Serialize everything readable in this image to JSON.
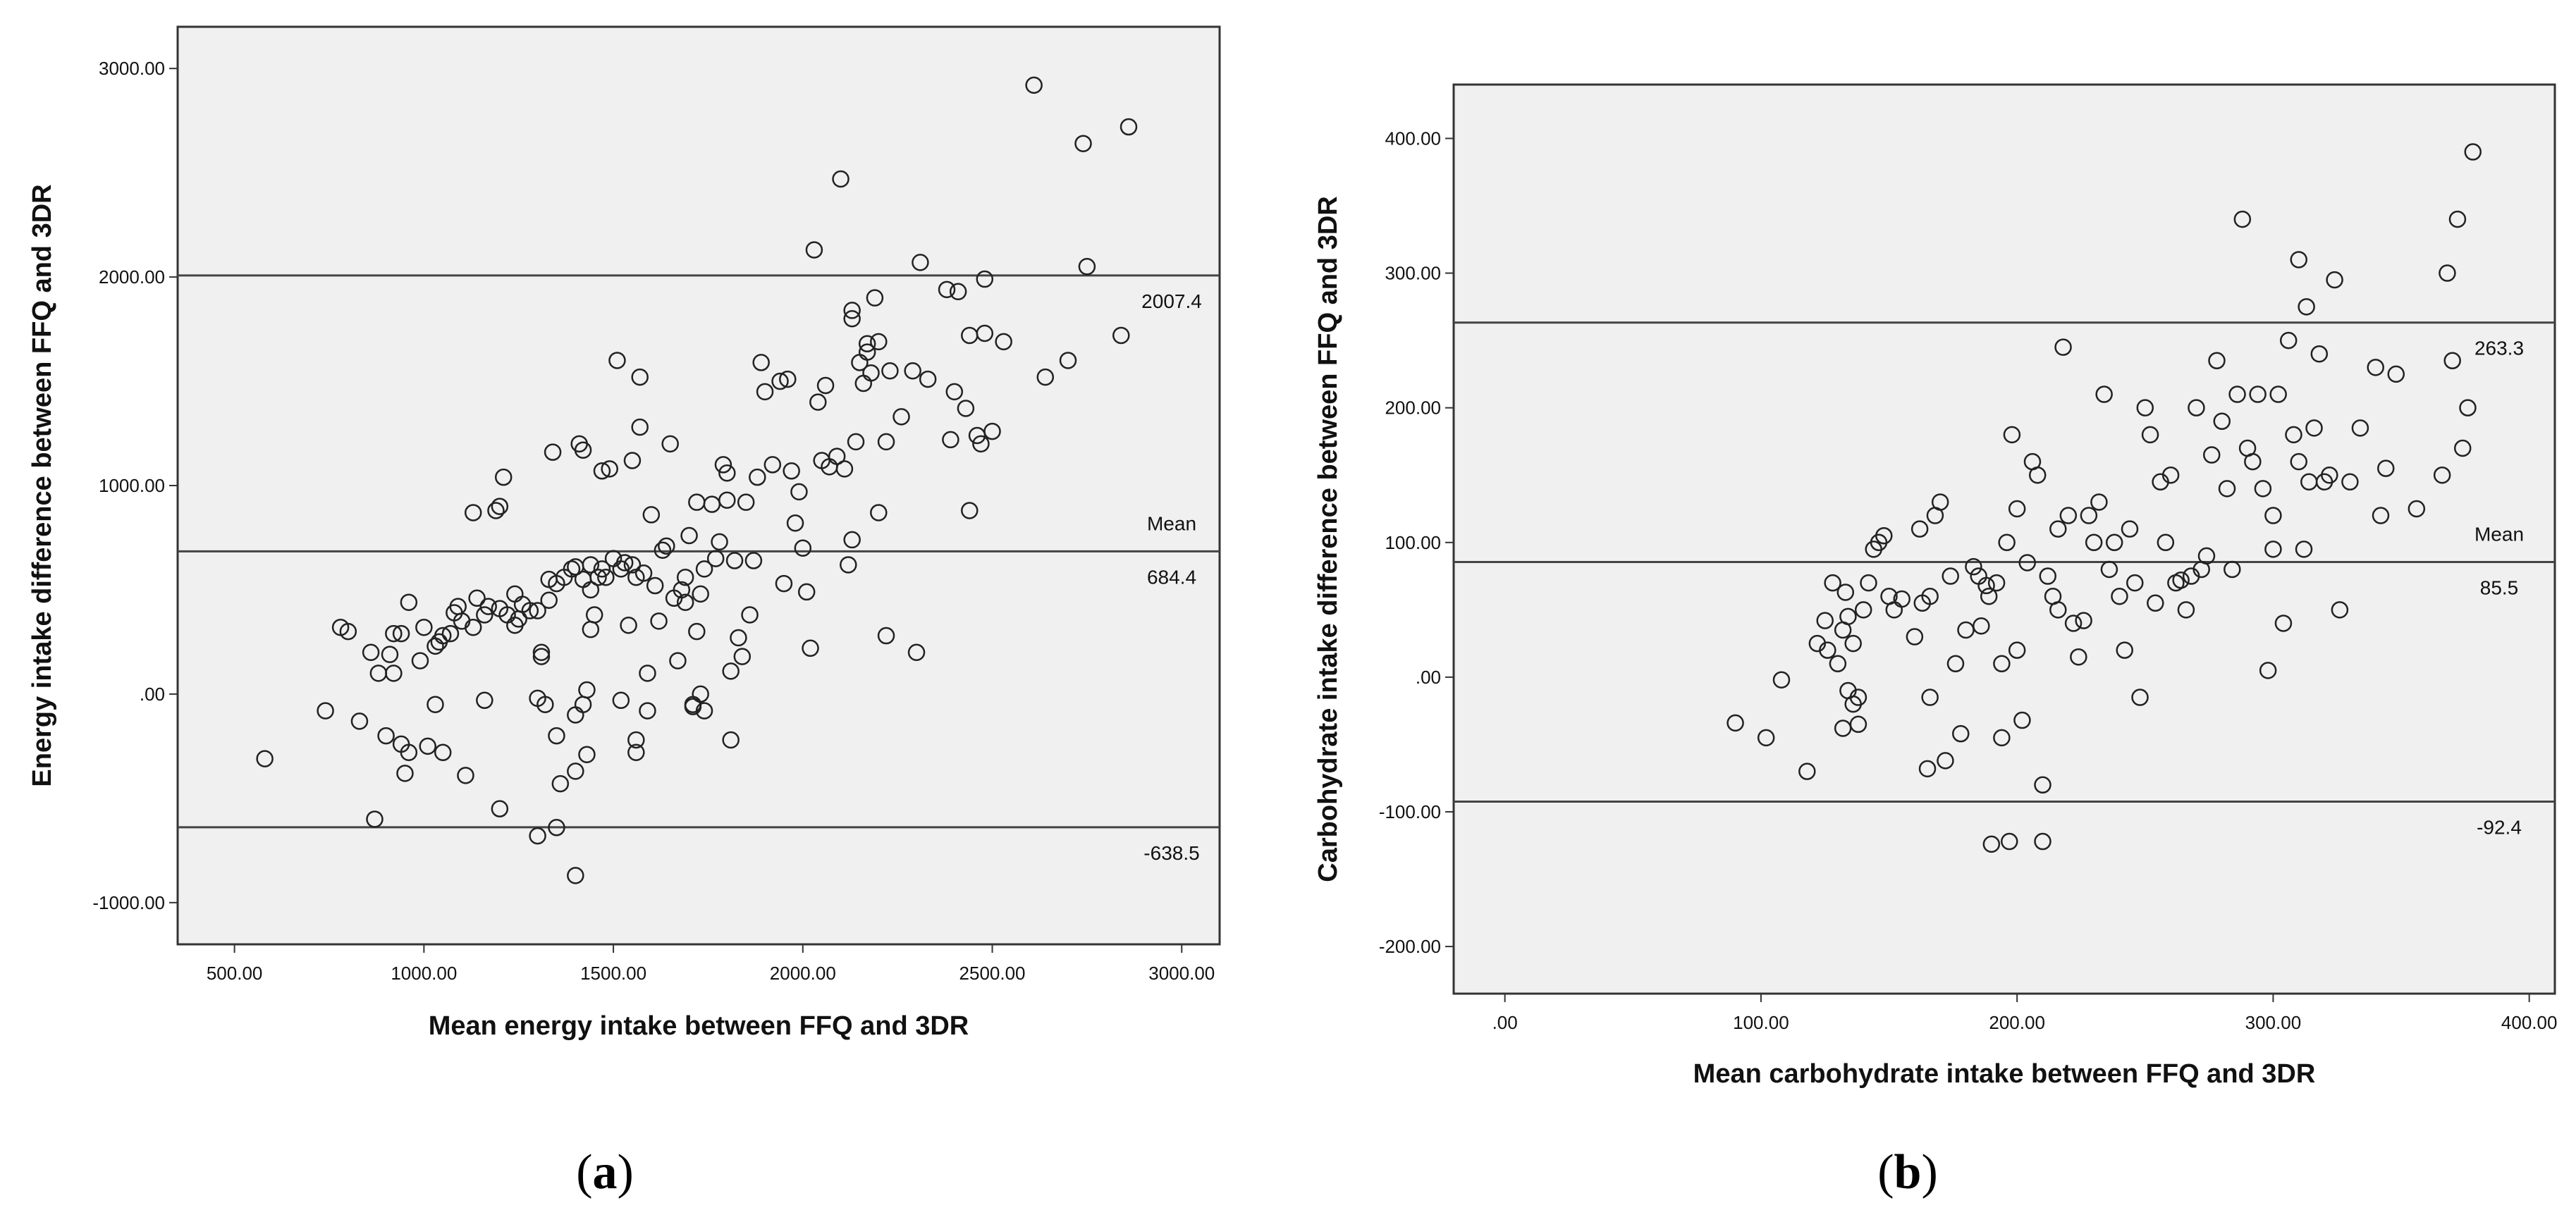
{
  "chart_data": [
    {
      "type": "scatter",
      "panel_label": "a",
      "xlabel": "Mean energy intake between FFQ and 3DR",
      "ylabel": "Energy intake difference between FFQ and 3DR",
      "xlim": [
        350,
        3100
      ],
      "ylim": [
        -1200,
        3200
      ],
      "xticks": [
        500,
        1000,
        1500,
        2000,
        2500,
        3000
      ],
      "xtick_labels": [
        "500.00",
        "1000.00",
        "1500.00",
        "2000.00",
        "2500.00",
        "3000.00"
      ],
      "yticks": [
        -1000,
        0,
        1000,
        2000,
        3000
      ],
      "ytick_labels": [
        "-1000.00",
        ".00",
        "1000.00",
        "2000.00",
        "3000.00"
      ],
      "reference_lines": [
        {
          "name": "upper",
          "value": 2007.4,
          "labels": [
            "2007.4"
          ]
        },
        {
          "name": "mean",
          "value": 684.4,
          "labels": [
            "Mean",
            "684.4"
          ]
        },
        {
          "name": "lower",
          "value": -638.5,
          "labels": [
            "-638.5"
          ]
        }
      ],
      "points": [
        [
          580,
          -310
        ],
        [
          740,
          -80
        ],
        [
          780,
          320
        ],
        [
          800,
          300
        ],
        [
          830,
          -130
        ],
        [
          860,
          200
        ],
        [
          870,
          -600
        ],
        [
          880,
          100
        ],
        [
          900,
          -200
        ],
        [
          910,
          190
        ],
        [
          920,
          100
        ],
        [
          920,
          290
        ],
        [
          940,
          -240
        ],
        [
          940,
          290
        ],
        [
          950,
          -380
        ],
        [
          960,
          -280
        ],
        [
          960,
          440
        ],
        [
          990,
          160
        ],
        [
          1000,
          320
        ],
        [
          1010,
          -250
        ],
        [
          1030,
          -50
        ],
        [
          1030,
          230
        ],
        [
          1040,
          250
        ],
        [
          1050,
          -280
        ],
        [
          1050,
          280
        ],
        [
          1070,
          290
        ],
        [
          1080,
          390
        ],
        [
          1090,
          420
        ],
        [
          1100,
          350
        ],
        [
          1110,
          -390
        ],
        [
          1130,
          320
        ],
        [
          1130,
          870
        ],
        [
          1140,
          460
        ],
        [
          1160,
          -30
        ],
        [
          1160,
          380
        ],
        [
          1170,
          420
        ],
        [
          1190,
          880
        ],
        [
          1200,
          410
        ],
        [
          1200,
          -550
        ],
        [
          1200,
          900
        ],
        [
          1210,
          1040
        ],
        [
          1220,
          380
        ],
        [
          1240,
          480
        ],
        [
          1240,
          330
        ],
        [
          1250,
          360
        ],
        [
          1260,
          430
        ],
        [
          1280,
          400
        ],
        [
          1300,
          -680
        ],
        [
          1300,
          -20
        ],
        [
          1310,
          200
        ],
        [
          1300,
          400
        ],
        [
          1310,
          180
        ],
        [
          1330,
          550
        ],
        [
          1320,
          -50
        ],
        [
          1330,
          450
        ],
        [
          1340,
          1160
        ],
        [
          1350,
          -640
        ],
        [
          1350,
          -200
        ],
        [
          1350,
          530
        ],
        [
          1360,
          -430
        ],
        [
          1370,
          560
        ],
        [
          1390,
          600
        ],
        [
          1400,
          610
        ],
        [
          1400,
          -100
        ],
        [
          1410,
          1200
        ],
        [
          1420,
          550
        ],
        [
          1400,
          -870
        ],
        [
          1420,
          1170
        ],
        [
          1400,
          -370
        ],
        [
          1430,
          -290
        ],
        [
          1440,
          500
        ],
        [
          1420,
          -50
        ],
        [
          1430,
          20
        ],
        [
          1440,
          310
        ],
        [
          1440,
          620
        ],
        [
          1450,
          380
        ],
        [
          1470,
          1070
        ],
        [
          1460,
          560
        ],
        [
          1470,
          600
        ],
        [
          1480,
          560
        ],
        [
          1490,
          1080
        ],
        [
          1500,
          650
        ],
        [
          1510,
          1600
        ],
        [
          1520,
          600
        ],
        [
          1520,
          -30
        ],
        [
          1530,
          630
        ],
        [
          1540,
          330
        ],
        [
          1550,
          620
        ],
        [
          1550,
          1120
        ],
        [
          1560,
          560
        ],
        [
          1560,
          -220
        ],
        [
          1560,
          -280
        ],
        [
          1570,
          1520
        ],
        [
          1570,
          1280
        ],
        [
          1580,
          580
        ],
        [
          1590,
          -80
        ],
        [
          1590,
          100
        ],
        [
          1610,
          520
        ],
        [
          1600,
          860
        ],
        [
          1620,
          350
        ],
        [
          1630,
          690
        ],
        [
          1640,
          710
        ],
        [
          1650,
          1200
        ],
        [
          1660,
          460
        ],
        [
          1670,
          160
        ],
        [
          1680,
          500
        ],
        [
          1690,
          560
        ],
        [
          1690,
          440
        ],
        [
          1700,
          760
        ],
        [
          1710,
          -50
        ],
        [
          1710,
          -60
        ],
        [
          1720,
          920
        ],
        [
          1720,
          300
        ],
        [
          1730,
          480
        ],
        [
          1730,
          0
        ],
        [
          1740,
          600
        ],
        [
          1740,
          -80
        ],
        [
          1760,
          910
        ],
        [
          1770,
          650
        ],
        [
          1780,
          730
        ],
        [
          1790,
          1100
        ],
        [
          1800,
          1060
        ],
        [
          1800,
          930
        ],
        [
          1810,
          110
        ],
        [
          1810,
          -220
        ],
        [
          1820,
          640
        ],
        [
          1830,
          270
        ],
        [
          1840,
          180
        ],
        [
          1850,
          920
        ],
        [
          1860,
          380
        ],
        [
          1870,
          640
        ],
        [
          1880,
          1040
        ],
        [
          1890,
          1590
        ],
        [
          1900,
          1450
        ],
        [
          1920,
          1100
        ],
        [
          1940,
          1500
        ],
        [
          1950,
          530
        ],
        [
          1960,
          1510
        ],
        [
          1970,
          1070
        ],
        [
          1980,
          820
        ],
        [
          1990,
          970
        ],
        [
          2000,
          700
        ],
        [
          2010,
          490
        ],
        [
          2020,
          220
        ],
        [
          2030,
          2130
        ],
        [
          2040,
          1400
        ],
        [
          2050,
          1120
        ],
        [
          2060,
          1480
        ],
        [
          2070,
          1090
        ],
        [
          2090,
          1140
        ],
        [
          2100,
          2470
        ],
        [
          2110,
          1080
        ],
        [
          2120,
          620
        ],
        [
          2130,
          1840
        ],
        [
          2130,
          1800
        ],
        [
          2130,
          740
        ],
        [
          2140,
          1210
        ],
        [
          2150,
          1590
        ],
        [
          2160,
          1490
        ],
        [
          2170,
          1640
        ],
        [
          2170,
          1680
        ],
        [
          2180,
          1540
        ],
        [
          2190,
          1900
        ],
        [
          2200,
          870
        ],
        [
          2200,
          1690
        ],
        [
          2220,
          1210
        ],
        [
          2220,
          280
        ],
        [
          2230,
          1550
        ],
        [
          2260,
          1330
        ],
        [
          2290,
          1550
        ],
        [
          2300,
          200
        ],
        [
          2310,
          2070
        ],
        [
          2330,
          1510
        ],
        [
          2380,
          1940
        ],
        [
          2390,
          1220
        ],
        [
          2400,
          1450
        ],
        [
          2410,
          1930
        ],
        [
          2430,
          1370
        ],
        [
          2440,
          880
        ],
        [
          2440,
          1720
        ],
        [
          2460,
          1240
        ],
        [
          2470,
          1200
        ],
        [
          2480,
          1990
        ],
        [
          2480,
          1730
        ],
        [
          2500,
          1260
        ],
        [
          2530,
          1690
        ],
        [
          2610,
          2920
        ],
        [
          2640,
          1520
        ],
        [
          2700,
          1600
        ],
        [
          2740,
          2640
        ],
        [
          2750,
          2050
        ],
        [
          2840,
          1720
        ],
        [
          2860,
          2720
        ]
      ]
    },
    {
      "type": "scatter",
      "panel_label": "b",
      "xlabel": "Mean carbohydrate intake between FFQ and 3DR",
      "ylabel": "Carbohydrate intake difference between FFQ and 3DR",
      "xlim": [
        -20,
        410
      ],
      "ylim": [
        -235,
        440
      ],
      "xticks": [
        0,
        100,
        200,
        300,
        400
      ],
      "xtick_labels": [
        ".00",
        "100.00",
        "200.00",
        "300.00",
        "400.00"
      ],
      "yticks": [
        -200,
        -100,
        0,
        100,
        200,
        300,
        400
      ],
      "ytick_labels": [
        "-200.00",
        "-100.00",
        ".00",
        "100.00",
        "200.00",
        "300.00",
        "400.00"
      ],
      "reference_lines": [
        {
          "name": "upper",
          "value": 263.3,
          "labels": [
            "263.3"
          ]
        },
        {
          "name": "mean",
          "value": 85.5,
          "labels": [
            "Mean",
            "85.5"
          ]
        },
        {
          "name": "lower",
          "value": -92.4,
          "labels": [
            "-92.4"
          ]
        }
      ],
      "points": [
        [
          90,
          -34
        ],
        [
          102,
          -45
        ],
        [
          108,
          -2
        ],
        [
          118,
          -70
        ],
        [
          122,
          25
        ],
        [
          125,
          42
        ],
        [
          126,
          20
        ],
        [
          128,
          70
        ],
        [
          130,
          10
        ],
        [
          132,
          35
        ],
        [
          132,
          -38
        ],
        [
          133,
          63
        ],
        [
          134,
          -10
        ],
        [
          134,
          45
        ],
        [
          136,
          25
        ],
        [
          136,
          -20
        ],
        [
          138,
          -35
        ],
        [
          138,
          -15
        ],
        [
          140,
          50
        ],
        [
          142,
          70
        ],
        [
          144,
          95
        ],
        [
          146,
          100
        ],
        [
          148,
          105
        ],
        [
          150,
          60
        ],
        [
          152,
          50
        ],
        [
          155,
          58
        ],
        [
          160,
          30
        ],
        [
          162,
          110
        ],
        [
          163,
          55
        ],
        [
          165,
          -68
        ],
        [
          166,
          -15
        ],
        [
          166,
          60
        ],
        [
          168,
          120
        ],
        [
          170,
          130
        ],
        [
          172,
          -62
        ],
        [
          174,
          75
        ],
        [
          176,
          10
        ],
        [
          178,
          -42
        ],
        [
          180,
          35
        ],
        [
          183,
          82
        ],
        [
          185,
          75
        ],
        [
          186,
          38
        ],
        [
          188,
          68
        ],
        [
          189,
          60
        ],
        [
          190,
          -124
        ],
        [
          192,
          70
        ],
        [
          194,
          -45
        ],
        [
          194,
          10
        ],
        [
          196,
          100
        ],
        [
          197,
          -122
        ],
        [
          198,
          180
        ],
        [
          200,
          125
        ],
        [
          200,
          20
        ],
        [
          202,
          -32
        ],
        [
          204,
          85
        ],
        [
          206,
          160
        ],
        [
          208,
          150
        ],
        [
          210,
          -80
        ],
        [
          210,
          -122
        ],
        [
          212,
          75
        ],
        [
          214,
          60
        ],
        [
          216,
          50
        ],
        [
          216,
          110
        ],
        [
          218,
          245
        ],
        [
          220,
          120
        ],
        [
          222,
          40
        ],
        [
          224,
          15
        ],
        [
          226,
          42
        ],
        [
          228,
          120
        ],
        [
          230,
          100
        ],
        [
          232,
          130
        ],
        [
          234,
          210
        ],
        [
          236,
          80
        ],
        [
          238,
          100
        ],
        [
          240,
          60
        ],
        [
          242,
          20
        ],
        [
          244,
          110
        ],
        [
          246,
          70
        ],
        [
          248,
          -15
        ],
        [
          250,
          200
        ],
        [
          252,
          180
        ],
        [
          254,
          55
        ],
        [
          256,
          145
        ],
        [
          258,
          100
        ],
        [
          260,
          150
        ],
        [
          262,
          70
        ],
        [
          264,
          72
        ],
        [
          266,
          50
        ],
        [
          268,
          75
        ],
        [
          270,
          200
        ],
        [
          272,
          80
        ],
        [
          274,
          90
        ],
        [
          276,
          165
        ],
        [
          278,
          235
        ],
        [
          280,
          190
        ],
        [
          282,
          140
        ],
        [
          284,
          80
        ],
        [
          286,
          210
        ],
        [
          288,
          340
        ],
        [
          290,
          170
        ],
        [
          292,
          160
        ],
        [
          294,
          210
        ],
        [
          296,
          140
        ],
        [
          298,
          5
        ],
        [
          300,
          95
        ],
        [
          300,
          120
        ],
        [
          302,
          210
        ],
        [
          304,
          40
        ],
        [
          306,
          250
        ],
        [
          308,
          180
        ],
        [
          310,
          160
        ],
        [
          310,
          310
        ],
        [
          312,
          95
        ],
        [
          313,
          275
        ],
        [
          314,
          145
        ],
        [
          316,
          185
        ],
        [
          318,
          240
        ],
        [
          320,
          145
        ],
        [
          322,
          150
        ],
        [
          324,
          295
        ],
        [
          326,
          50
        ],
        [
          330,
          145
        ],
        [
          334,
          185
        ],
        [
          340,
          230
        ],
        [
          342,
          120
        ],
        [
          344,
          155
        ],
        [
          348,
          225
        ],
        [
          356,
          125
        ],
        [
          366,
          150
        ],
        [
          368,
          300
        ],
        [
          370,
          235
        ],
        [
          372,
          340
        ],
        [
          374,
          170
        ],
        [
          376,
          200
        ],
        [
          378,
          390
        ]
      ]
    }
  ]
}
